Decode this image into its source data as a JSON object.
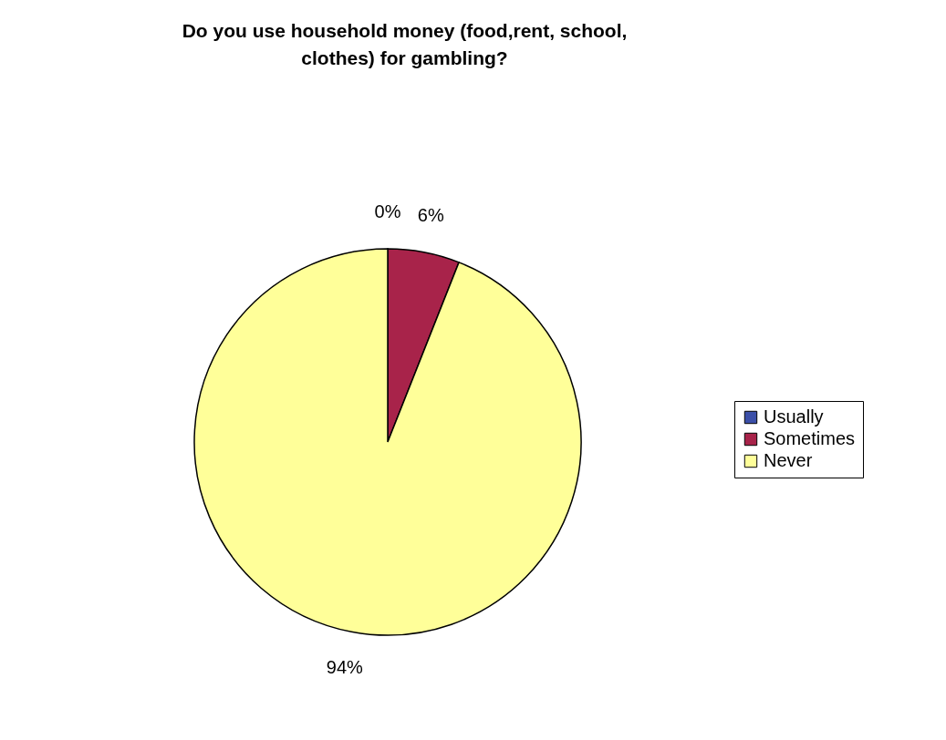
{
  "chart_data": {
    "type": "pie",
    "title": "Do you use household money (food,rent, school, clothes) for gambling?",
    "categories": [
      "Usually",
      "Sometimes",
      "Never"
    ],
    "values": [
      0,
      6,
      94
    ],
    "colors": [
      "#3b4fa8",
      "#a8234a",
      "#ffff99"
    ],
    "value_labels": [
      "0%",
      "6%",
      "94%"
    ],
    "legend": "right"
  }
}
